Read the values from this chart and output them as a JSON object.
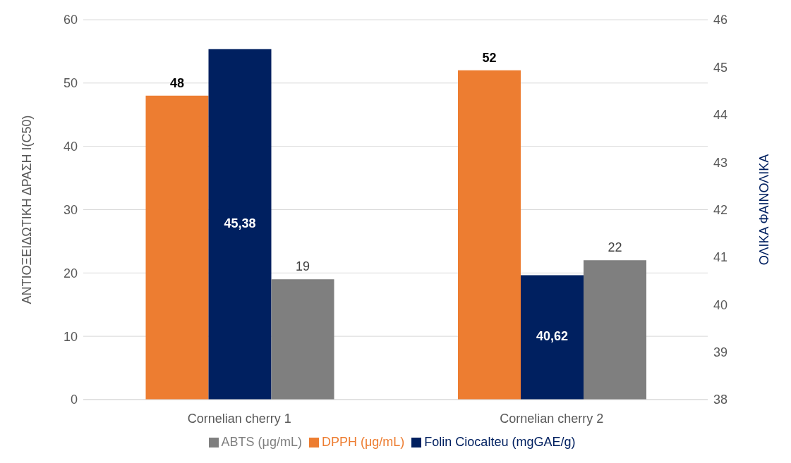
{
  "chart_data": {
    "type": "bar",
    "categories": [
      "Cornelian cherry 1",
      "Cornelian cherry 2"
    ],
    "ylabel": "ΑΝΤΙΟΞΕΙΔΩΤΙΚΗ ΔΡΑΣΗ Ι(C50)",
    "y2label": "ΟΛΙΚΑ ΦΑΙΝΟΛΙΚΑ",
    "series": [
      {
        "name": "DPPH (μg/mL)",
        "color": "#ed7d31",
        "values": [
          48,
          52
        ],
        "value_labels": [
          "48",
          "52"
        ]
      },
      {
        "name": "Folin Ciocalteu (mgGAE/g)",
        "color": "#002060",
        "values": [
          45.38,
          40.62
        ],
        "axis": "y2",
        "value_labels": [
          "45,38",
          "40,62"
        ]
      },
      {
        "name": "ABTS (μg/mL)",
        "color": "#7f7f7f",
        "values": [
          19,
          22
        ],
        "value_labels": [
          "19",
          "22"
        ]
      }
    ],
    "ylim": [
      0,
      60
    ],
    "yticks": [
      0,
      10,
      20,
      30,
      40,
      50,
      60
    ],
    "y2lim": [
      38,
      46
    ],
    "y2ticks": [
      38,
      39,
      40,
      41,
      42,
      43,
      44,
      45,
      46
    ],
    "grid": "y",
    "legend": "bottom"
  }
}
